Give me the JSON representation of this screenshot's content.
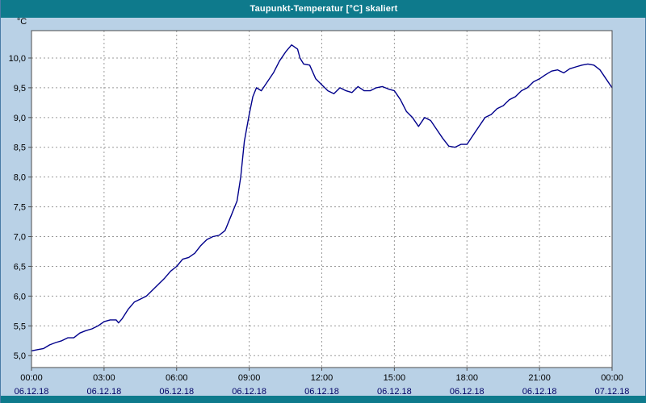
{
  "window": {
    "title": "Taupunkt-Temperatur [°C] skaliert"
  },
  "colors": {
    "titlebar_bg": "#0e7a8c",
    "page_bg": "#b9d1e6",
    "plot_bg": "#ffffff",
    "plot_border": "#4d4d4d",
    "grid": "#9a9a9a",
    "series_line": "#00008b",
    "time_label": "#000000",
    "date_label": "#000066",
    "y_label": "#000000"
  },
  "chart_data": {
    "type": "line",
    "title": "Taupunkt-Temperatur [°C] skaliert",
    "unit_label": "°C",
    "xlabel": "",
    "ylabel": "°C",
    "grid": true,
    "legend": "none",
    "xlim_hours": [
      0,
      24
    ],
    "ylim": [
      4.8,
      10.46
    ],
    "y_ticks": [
      {
        "value": 5.0,
        "label": "5,0"
      },
      {
        "value": 5.5,
        "label": "5,5"
      },
      {
        "value": 6.0,
        "label": "6,0"
      },
      {
        "value": 6.5,
        "label": "6,5"
      },
      {
        "value": 7.0,
        "label": "7,0"
      },
      {
        "value": 7.5,
        "label": "7,5"
      },
      {
        "value": 8.0,
        "label": "8,0"
      },
      {
        "value": 8.5,
        "label": "8,5"
      },
      {
        "value": 9.0,
        "label": "9,0"
      },
      {
        "value": 9.5,
        "label": "9,5"
      },
      {
        "value": 10.0,
        "label": "10,0"
      }
    ],
    "x_ticks": [
      {
        "hour": 0,
        "time": "00:00",
        "date": "06.12.18"
      },
      {
        "hour": 3,
        "time": "03:00",
        "date": "06.12.18"
      },
      {
        "hour": 6,
        "time": "06:00",
        "date": "06.12.18"
      },
      {
        "hour": 9,
        "time": "09:00",
        "date": "06.12.18"
      },
      {
        "hour": 12,
        "time": "12:00",
        "date": "06.12.18"
      },
      {
        "hour": 15,
        "time": "15:00",
        "date": "06.12.18"
      },
      {
        "hour": 18,
        "time": "18:00",
        "date": "06.12.18"
      },
      {
        "hour": 21,
        "time": "21:00",
        "date": "06.12.18"
      },
      {
        "hour": 24,
        "time": "00:00",
        "date": "07.12.18"
      }
    ],
    "series": [
      {
        "name": "Taupunkt-Temperatur",
        "color": "#00008b",
        "points": [
          [
            0.0,
            5.08
          ],
          [
            0.25,
            5.1
          ],
          [
            0.5,
            5.12
          ],
          [
            0.75,
            5.18
          ],
          [
            1.0,
            5.22
          ],
          [
            1.25,
            5.25
          ],
          [
            1.5,
            5.3
          ],
          [
            1.75,
            5.3
          ],
          [
            2.0,
            5.38
          ],
          [
            2.25,
            5.42
          ],
          [
            2.5,
            5.45
          ],
          [
            2.75,
            5.5
          ],
          [
            3.0,
            5.57
          ],
          [
            3.25,
            5.6
          ],
          [
            3.5,
            5.6
          ],
          [
            3.6,
            5.55
          ],
          [
            3.75,
            5.62
          ],
          [
            4.0,
            5.78
          ],
          [
            4.25,
            5.9
          ],
          [
            4.5,
            5.95
          ],
          [
            4.75,
            6.0
          ],
          [
            5.0,
            6.1
          ],
          [
            5.25,
            6.2
          ],
          [
            5.5,
            6.3
          ],
          [
            5.75,
            6.42
          ],
          [
            6.0,
            6.5
          ],
          [
            6.25,
            6.62
          ],
          [
            6.5,
            6.65
          ],
          [
            6.75,
            6.72
          ],
          [
            7.0,
            6.85
          ],
          [
            7.25,
            6.95
          ],
          [
            7.5,
            7.0
          ],
          [
            7.75,
            7.02
          ],
          [
            8.0,
            7.1
          ],
          [
            8.25,
            7.35
          ],
          [
            8.5,
            7.6
          ],
          [
            8.65,
            8.0
          ],
          [
            8.8,
            8.6
          ],
          [
            9.0,
            9.05
          ],
          [
            9.15,
            9.35
          ],
          [
            9.3,
            9.5
          ],
          [
            9.5,
            9.45
          ],
          [
            9.75,
            9.6
          ],
          [
            10.0,
            9.75
          ],
          [
            10.25,
            9.95
          ],
          [
            10.5,
            10.1
          ],
          [
            10.6,
            10.15
          ],
          [
            10.75,
            10.22
          ],
          [
            11.0,
            10.15
          ],
          [
            11.1,
            10.0
          ],
          [
            11.25,
            9.9
          ],
          [
            11.5,
            9.88
          ],
          [
            11.75,
            9.65
          ],
          [
            12.0,
            9.55
          ],
          [
            12.25,
            9.45
          ],
          [
            12.5,
            9.4
          ],
          [
            12.75,
            9.5
          ],
          [
            13.0,
            9.45
          ],
          [
            13.25,
            9.42
          ],
          [
            13.5,
            9.52
          ],
          [
            13.75,
            9.45
          ],
          [
            14.0,
            9.45
          ],
          [
            14.25,
            9.5
          ],
          [
            14.5,
            9.52
          ],
          [
            14.75,
            9.48
          ],
          [
            15.0,
            9.45
          ],
          [
            15.25,
            9.3
          ],
          [
            15.5,
            9.1
          ],
          [
            15.75,
            9.0
          ],
          [
            16.0,
            8.85
          ],
          [
            16.25,
            9.0
          ],
          [
            16.5,
            8.95
          ],
          [
            16.75,
            8.8
          ],
          [
            17.0,
            8.65
          ],
          [
            17.25,
            8.52
          ],
          [
            17.5,
            8.5
          ],
          [
            17.75,
            8.55
          ],
          [
            18.0,
            8.55
          ],
          [
            18.25,
            8.7
          ],
          [
            18.5,
            8.85
          ],
          [
            18.75,
            9.0
          ],
          [
            19.0,
            9.05
          ],
          [
            19.25,
            9.15
          ],
          [
            19.5,
            9.2
          ],
          [
            19.75,
            9.3
          ],
          [
            20.0,
            9.35
          ],
          [
            20.25,
            9.45
          ],
          [
            20.5,
            9.5
          ],
          [
            20.75,
            9.6
          ],
          [
            21.0,
            9.65
          ],
          [
            21.25,
            9.72
          ],
          [
            21.5,
            9.78
          ],
          [
            21.75,
            9.8
          ],
          [
            22.0,
            9.75
          ],
          [
            22.25,
            9.82
          ],
          [
            22.5,
            9.85
          ],
          [
            22.75,
            9.88
          ],
          [
            23.0,
            9.9
          ],
          [
            23.25,
            9.88
          ],
          [
            23.5,
            9.8
          ],
          [
            23.75,
            9.65
          ],
          [
            24.0,
            9.5
          ]
        ]
      }
    ]
  }
}
